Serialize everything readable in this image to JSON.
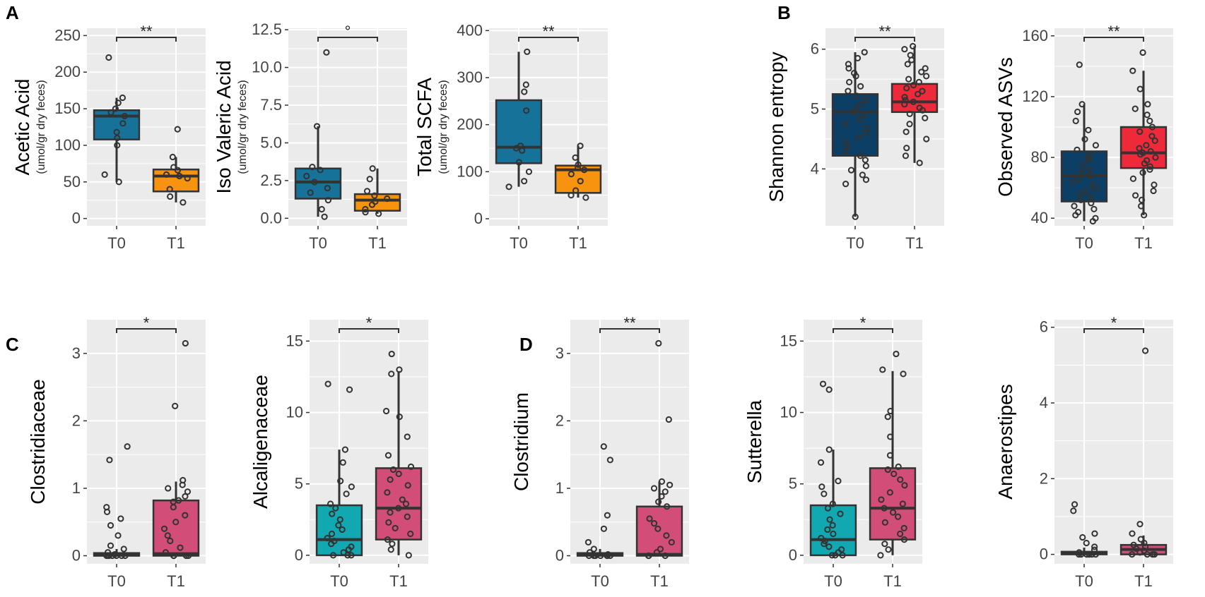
{
  "figure": {
    "panel_letters": [
      "A",
      "B",
      "C",
      "D"
    ],
    "colors": {
      "panel_bg": "#ebebeb",
      "grid": "#ffffff",
      "box_stroke": "#333333",
      "point_stroke": "#333333",
      "scfa_T0": "#17729a",
      "scfa_T1": "#f7930e",
      "alpha_T0": "#0b3f66",
      "alpha_T1": "#ee2a3a",
      "taxa_T0": "#12a8b2",
      "taxa_T1": "#d24e78"
    }
  },
  "chart_data": [
    {
      "id": "acetic",
      "panel": "A",
      "type": "box",
      "ylabel": "Acetic Acid",
      "ysublabel": "(umol/gr dry feces)",
      "categories": [
        "T0",
        "T1"
      ],
      "ylim": [
        -10,
        260
      ],
      "yticks": [
        0,
        50,
        100,
        150,
        200,
        250
      ],
      "yticklabels": [
        "0",
        "50",
        "100",
        "150",
        "200",
        "250"
      ],
      "significance": "**",
      "boxes": [
        {
          "group": "T0",
          "lower_whisker": 50,
          "q1": 108,
          "median": 140,
          "q3": 148,
          "upper_whisker": 165,
          "color_key": "scfa_T0",
          "points": [
            220,
            165,
            158,
            150,
            145,
            140,
            130,
            118,
            110,
            100,
            60,
            50
          ]
        },
        {
          "group": "T1",
          "lower_whisker": 22,
          "q1": 37,
          "median": 58,
          "q3": 67,
          "upper_whisker": 84,
          "color_key": "scfa_T1",
          "points": [
            122,
            84,
            70,
            66,
            60,
            58,
            55,
            40,
            30,
            22
          ]
        }
      ]
    },
    {
      "id": "isovaleric",
      "panel": "A",
      "type": "box",
      "ylabel": "Iso Valeric Acid",
      "ysublabel": "(umol/gr dry feces)",
      "categories": [
        "T0",
        "T1"
      ],
      "ylim": [
        -0.5,
        12.6
      ],
      "yticks": [
        0.0,
        2.5,
        5.0,
        7.5,
        10.0,
        12.5
      ],
      "yticklabels": [
        "0.0",
        "2.5",
        "5.0",
        "7.5",
        "10.0",
        "12.5"
      ],
      "significance": "°",
      "boxes": [
        {
          "group": "T0",
          "lower_whisker": 0.1,
          "q1": 1.3,
          "median": 2.4,
          "q3": 3.3,
          "upper_whisker": 6.1,
          "color_key": "scfa_T0",
          "points": [
            11.0,
            6.1,
            3.4,
            3.2,
            2.8,
            2.4,
            2.0,
            1.7,
            1.2,
            0.6,
            0.1
          ]
        },
        {
          "group": "T1",
          "lower_whisker": 0.3,
          "q1": 0.5,
          "median": 1.2,
          "q3": 1.6,
          "upper_whisker": 3.3,
          "color_key": "scfa_T1",
          "points": [
            3.3,
            2.6,
            1.8,
            1.5,
            1.3,
            1.1,
            0.9,
            0.6,
            0.4,
            0.3
          ]
        }
      ]
    },
    {
      "id": "totalscfa",
      "panel": "A",
      "type": "box",
      "ylabel": "Total SCFA",
      "ysublabel": "(umol/gr dry feces)",
      "categories": [
        "T0",
        "T1"
      ],
      "ylim": [
        -15,
        405
      ],
      "yticks": [
        0,
        100,
        200,
        300,
        400
      ],
      "yticklabels": [
        "0",
        "100",
        "200",
        "300",
        "400"
      ],
      "significance": "**",
      "boxes": [
        {
          "group": "T0",
          "lower_whisker": 68,
          "q1": 118,
          "median": 152,
          "q3": 252,
          "upper_whisker": 355,
          "color_key": "scfa_T0",
          "points": [
            355,
            285,
            270,
            230,
            155,
            150,
            145,
            120,
            100,
            80,
            68
          ]
        },
        {
          "group": "T1",
          "lower_whisker": 45,
          "q1": 55,
          "median": 104,
          "q3": 113,
          "upper_whisker": 155,
          "color_key": "scfa_T1",
          "points": [
            155,
            130,
            115,
            108,
            104,
            95,
            80,
            60,
            50,
            45
          ]
        }
      ]
    },
    {
      "id": "shannon",
      "panel": "B",
      "type": "box",
      "ylabel": "Shannon entropy",
      "ysublabel": "",
      "categories": [
        "T0",
        "T1"
      ],
      "ylim": [
        3.05,
        6.35
      ],
      "yticks": [
        4,
        5,
        6
      ],
      "yticklabels": [
        "4",
        "5",
        "6"
      ],
      "significance": "**",
      "boxes": [
        {
          "group": "T0",
          "lower_whisker": 3.2,
          "q1": 4.22,
          "median": 4.95,
          "q3": 5.25,
          "upper_whisker": 5.95,
          "color_key": "alpha_T0",
          "points": [
            5.95,
            5.85,
            5.75,
            5.68,
            5.6,
            5.55,
            5.45,
            5.38,
            5.3,
            5.22,
            5.15,
            5.08,
            5.0,
            4.95,
            4.9,
            4.82,
            4.75,
            4.68,
            4.6,
            4.52,
            4.45,
            4.38,
            4.3,
            4.22,
            4.15,
            4.05,
            3.98,
            3.9,
            3.82,
            3.75,
            3.2
          ]
        },
        {
          "group": "T1",
          "lower_whisker": 4.1,
          "q1": 4.95,
          "median": 5.12,
          "q3": 5.42,
          "upper_whisker": 6.05,
          "color_key": "alpha_T1",
          "points": [
            6.05,
            6.0,
            5.9,
            5.82,
            5.75,
            5.68,
            5.62,
            5.55,
            5.5,
            5.45,
            5.4,
            5.35,
            5.3,
            5.25,
            5.2,
            5.15,
            5.12,
            5.08,
            5.02,
            4.98,
            4.92,
            4.85,
            4.75,
            4.62,
            4.5,
            4.35,
            4.22,
            4.1
          ]
        }
      ]
    },
    {
      "id": "observed",
      "panel": "B",
      "type": "box",
      "ylabel": "Observed ASVs",
      "ysublabel": "",
      "categories": [
        "T0",
        "T1"
      ],
      "ylim": [
        35,
        165
      ],
      "yticks": [
        40,
        80,
        120,
        160
      ],
      "yticklabels": [
        "40",
        "80",
        "120",
        "160"
      ],
      "significance": "**",
      "boxes": [
        {
          "group": "T0",
          "lower_whisker": 38,
          "q1": 51,
          "median": 68,
          "q3": 84,
          "upper_whisker": 115,
          "color_key": "alpha_T0",
          "points": [
            141,
            115,
            110,
            104,
            98,
            92,
            88,
            85,
            82,
            80,
            78,
            75,
            72,
            70,
            68,
            66,
            64,
            62,
            60,
            58,
            56,
            54,
            52,
            50,
            48,
            46,
            44,
            42,
            40,
            38
          ]
        },
        {
          "group": "T1",
          "lower_whisker": 42,
          "q1": 73,
          "median": 83,
          "q3": 100,
          "upper_whisker": 137,
          "color_key": "alpha_T1",
          "points": [
            149,
            137,
            125,
            115,
            112,
            108,
            104,
            100,
            97,
            94,
            91,
            88,
            86,
            84,
            83,
            82,
            80,
            78,
            76,
            74,
            72,
            70,
            66,
            62,
            58,
            55,
            52,
            48,
            42
          ]
        }
      ]
    },
    {
      "id": "clostridiaceae",
      "panel": "C",
      "type": "box",
      "ylabel": "Clostridiaceae",
      "ysublabel": "",
      "categories": [
        "T0",
        "T1"
      ],
      "ylim": [
        -0.12,
        3.5
      ],
      "yticks": [
        0,
        1,
        2,
        3
      ],
      "yticklabels": [
        "0",
        "1",
        "2",
        "3"
      ],
      "significance": "*",
      "boxes": [
        {
          "group": "T0",
          "lower_whisker": 0,
          "q1": 0,
          "median": 0.01,
          "q3": 0.04,
          "upper_whisker": 0.1,
          "color_key": "taxa_T0",
          "points": [
            1.62,
            1.42,
            0.72,
            0.65,
            0.55,
            0.45,
            0.3,
            0.15,
            0.1,
            0.05,
            0.02,
            0.0,
            0.0,
            0.0,
            0.0,
            0.0,
            0.0,
            0.0
          ]
        },
        {
          "group": "T1",
          "lower_whisker": 0,
          "q1": 0,
          "median": 0.03,
          "q3": 0.82,
          "upper_whisker": 1.1,
          "color_key": "taxa_T1",
          "points": [
            3.15,
            2.22,
            1.12,
            1.05,
            1.0,
            0.95,
            0.88,
            0.82,
            0.8,
            0.72,
            0.6,
            0.5,
            0.4,
            0.3,
            0.22,
            0.12,
            0.05,
            0.0,
            0.0,
            0.0,
            0.0
          ]
        }
      ]
    },
    {
      "id": "alcaligenaceae",
      "panel": "C",
      "type": "box",
      "ylabel": "Alcaligenaceae",
      "ysublabel": "",
      "categories": [
        "T0",
        "T1"
      ],
      "ylim": [
        -0.6,
        16.5
      ],
      "yticks": [
        0,
        5,
        10,
        15
      ],
      "yticklabels": [
        "0",
        "5",
        "10",
        "15"
      ],
      "significance": "*",
      "boxes": [
        {
          "group": "T0",
          "lower_whisker": 0,
          "q1": 0,
          "median": 1.1,
          "q3": 3.5,
          "upper_whisker": 7.4,
          "color_key": "taxa_T0",
          "points": [
            12.0,
            11.6,
            7.4,
            6.5,
            5.2,
            4.8,
            4.3,
            3.6,
            3.3,
            2.9,
            2.5,
            2.1,
            1.8,
            1.5,
            1.2,
            1.0,
            0.8,
            0.6,
            0.4,
            0.2,
            0.0,
            0.0,
            0.0
          ]
        },
        {
          "group": "T1",
          "lower_whisker": 0,
          "q1": 1.1,
          "median": 3.3,
          "q3": 6.1,
          "upper_whisker": 12.9,
          "color_key": "taxa_T1",
          "points": [
            14.1,
            13.0,
            12.7,
            10.1,
            9.7,
            8.3,
            7.0,
            6.2,
            6.0,
            5.7,
            5.3,
            4.9,
            4.4,
            3.9,
            3.6,
            3.3,
            3.0,
            2.7,
            2.3,
            1.9,
            1.5,
            1.1,
            0.8,
            0.4,
            0.0
          ]
        }
      ]
    },
    {
      "id": "clostridium",
      "panel": "D",
      "type": "box",
      "ylabel": "Clostridium",
      "ysublabel": "",
      "categories": [
        "T0",
        "T1"
      ],
      "ylim": [
        -0.12,
        3.5
      ],
      "yticks": [
        0,
        1,
        2,
        3
      ],
      "yticklabels": [
        "0",
        "1",
        "2",
        "3"
      ],
      "significance": "**",
      "boxes": [
        {
          "group": "T0",
          "lower_whisker": 0,
          "q1": 0,
          "median": 0.01,
          "q3": 0.04,
          "upper_whisker": 0.1,
          "color_key": "taxa_T0",
          "points": [
            1.62,
            1.42,
            0.6,
            0.4,
            0.2,
            0.1,
            0.05,
            0.02,
            0.0,
            0.0,
            0.0,
            0.0,
            0.0,
            0.0,
            0.0
          ]
        },
        {
          "group": "T1",
          "lower_whisker": 0,
          "q1": 0,
          "median": 0.02,
          "q3": 0.73,
          "upper_whisker": 1.1,
          "color_key": "taxa_T1",
          "points": [
            3.15,
            2.02,
            1.1,
            1.05,
            1.0,
            0.95,
            0.88,
            0.8,
            0.73,
            0.55,
            0.48,
            0.4,
            0.3,
            0.2,
            0.1,
            0.05,
            0.0,
            0.0,
            0.0
          ]
        }
      ]
    },
    {
      "id": "sutterella",
      "panel": "D",
      "type": "box",
      "ylabel": "Sutterella",
      "ysublabel": "",
      "categories": [
        "T0",
        "T1"
      ],
      "ylim": [
        -0.6,
        16.5
      ],
      "yticks": [
        0,
        5,
        10,
        15
      ],
      "yticklabels": [
        "0",
        "5",
        "10",
        "15"
      ],
      "significance": "*",
      "boxes": [
        {
          "group": "T0",
          "lower_whisker": 0,
          "q1": 0,
          "median": 1.1,
          "q3": 3.5,
          "upper_whisker": 7.4,
          "color_key": "taxa_T0",
          "points": [
            12.0,
            11.6,
            7.4,
            6.5,
            5.2,
            4.8,
            4.3,
            3.6,
            3.3,
            2.9,
            2.5,
            2.1,
            1.8,
            1.5,
            1.2,
            1.0,
            0.8,
            0.6,
            0.4,
            0.2,
            0.0,
            0.0,
            0.0
          ]
        },
        {
          "group": "T1",
          "lower_whisker": 0,
          "q1": 1.1,
          "median": 3.3,
          "q3": 6.1,
          "upper_whisker": 12.9,
          "color_key": "taxa_T1",
          "points": [
            14.1,
            13.0,
            12.7,
            10.1,
            9.7,
            8.3,
            7.0,
            6.2,
            6.0,
            5.7,
            5.3,
            4.9,
            4.4,
            3.9,
            3.6,
            3.3,
            3.0,
            2.7,
            2.3,
            1.9,
            1.5,
            1.1,
            0.8,
            0.4,
            0.0
          ]
        }
      ]
    },
    {
      "id": "anaerostipes",
      "panel": "D",
      "type": "box",
      "ylabel": "Anaerostipes",
      "ysublabel": "",
      "categories": [
        "T0",
        "T1"
      ],
      "ylim": [
        -0.25,
        6.2
      ],
      "yticks": [
        0,
        2,
        4,
        6
      ],
      "yticklabels": [
        "0",
        "2",
        "4",
        "6"
      ],
      "significance": "*",
      "boxes": [
        {
          "group": "T0",
          "lower_whisker": 0,
          "q1": 0,
          "median": 0.02,
          "q3": 0.07,
          "upper_whisker": 0.18,
          "color_key": "taxa_T0",
          "points": [
            1.32,
            1.15,
            0.55,
            0.45,
            0.3,
            0.2,
            0.12,
            0.05,
            0.0,
            0.0,
            0.0,
            0.0,
            0.0,
            0.0
          ]
        },
        {
          "group": "T1",
          "lower_whisker": 0,
          "q1": 0,
          "median": 0.13,
          "q3": 0.25,
          "upper_whisker": 0.5,
          "color_key": "taxa_T1",
          "points": [
            5.38,
            0.8,
            0.55,
            0.4,
            0.3,
            0.25,
            0.2,
            0.15,
            0.1,
            0.05,
            0.0,
            0.0,
            0.0,
            0.0
          ]
        }
      ]
    }
  ]
}
